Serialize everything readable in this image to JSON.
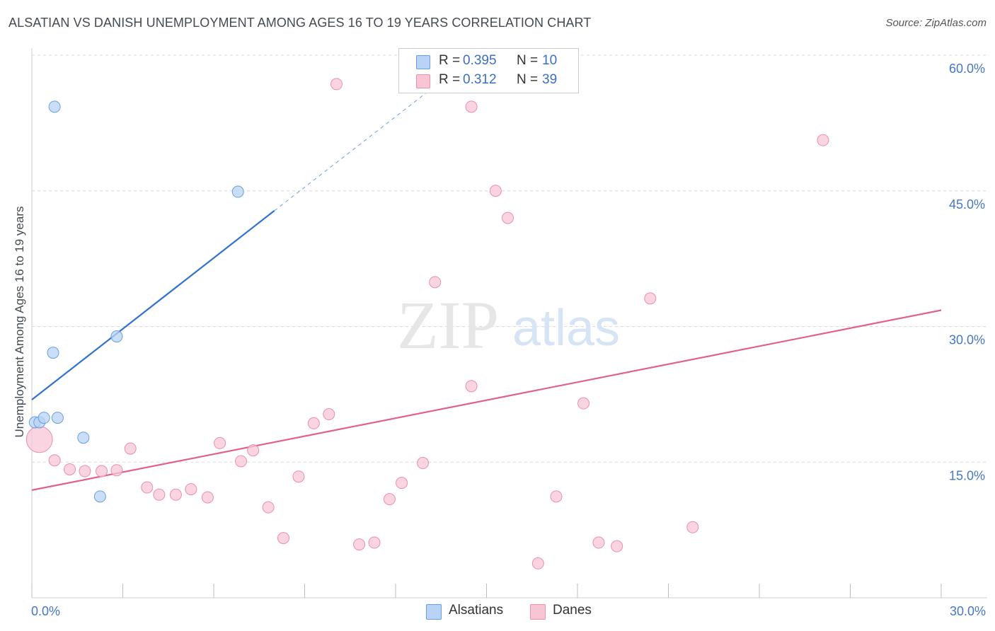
{
  "title": "ALSATIAN VS DANISH UNEMPLOYMENT AMONG AGES 16 TO 19 YEARS CORRELATION CHART",
  "source": "Source: ZipAtlas.com",
  "watermark": {
    "zip": "ZIP",
    "atlas": "atlas"
  },
  "colors": {
    "alsatian_fill": "#b8d3f5",
    "alsatian_stroke": "#6a9ee0",
    "alsatian_line": "#2f72cf",
    "danes_fill": "#f8c5d5",
    "danes_stroke": "#e890ac",
    "danes_line": "#e06090",
    "grid": "#d8d8d8",
    "axis_text": "#4477c9"
  },
  "legend": {
    "items": [
      {
        "r_label": "R =",
        "r_value": "0.395",
        "n_label": "N =",
        "n_value": "10"
      },
      {
        "r_label": "R =",
        "r_value": "0.312",
        "n_label": "N =",
        "n_value": "39"
      }
    ]
  },
  "bottom_legend": {
    "alsatians": "Alsatians",
    "danes": "Danes"
  },
  "chart_data": {
    "type": "scatter",
    "title": "ALSATIAN VS DANISH UNEMPLOYMENT AMONG AGES 16 TO 19 YEARS CORRELATION CHART",
    "xlabel": "",
    "ylabel": "Unemployment Among Ages 16 to 19 years",
    "xlim": [
      0,
      30
    ],
    "ylim": [
      0,
      60
    ],
    "x_tick_labels": [
      "0.0%",
      "30.0%"
    ],
    "y_ticks": [
      15,
      30,
      45,
      60
    ],
    "y_tick_labels": [
      "15.0%",
      "30.0%",
      "45.0%",
      "60.0%"
    ],
    "grid": true,
    "series": [
      {
        "name": "Alsatians",
        "r": 0.395,
        "n": 10,
        "points": [
          {
            "x": 0.1,
            "y": 19.4,
            "s": 1
          },
          {
            "x": 0.25,
            "y": 19.4,
            "s": 1
          },
          {
            "x": 0.4,
            "y": 19.9,
            "s": 1
          },
          {
            "x": 0.7,
            "y": 27.1,
            "s": 1
          },
          {
            "x": 0.75,
            "y": 54.3,
            "s": 1
          },
          {
            "x": 0.85,
            "y": 19.9,
            "s": 1
          },
          {
            "x": 1.7,
            "y": 17.7,
            "s": 1
          },
          {
            "x": 2.25,
            "y": 11.2,
            "s": 1
          },
          {
            "x": 2.8,
            "y": 28.9,
            "s": 1
          },
          {
            "x": 6.8,
            "y": 44.9,
            "s": 1
          }
        ],
        "trend": {
          "x0": 0.0,
          "y0": 21.9,
          "x1": 8.0,
          "y1": 42.8,
          "dash_to_x": 15.0,
          "dash_to_y": 61.0
        }
      },
      {
        "name": "Danes",
        "r": 0.312,
        "n": 39,
        "points": [
          {
            "x": 0.25,
            "y": 17.5,
            "s": 2.3
          },
          {
            "x": 0.75,
            "y": 15.2,
            "s": 1
          },
          {
            "x": 1.25,
            "y": 14.2,
            "s": 1
          },
          {
            "x": 1.75,
            "y": 14.0,
            "s": 1
          },
          {
            "x": 2.3,
            "y": 14.0,
            "s": 1
          },
          {
            "x": 2.8,
            "y": 14.1,
            "s": 1
          },
          {
            "x": 3.25,
            "y": 16.5,
            "s": 1
          },
          {
            "x": 3.8,
            "y": 12.2,
            "s": 1
          },
          {
            "x": 4.2,
            "y": 11.4,
            "s": 1
          },
          {
            "x": 4.75,
            "y": 11.4,
            "s": 1
          },
          {
            "x": 5.25,
            "y": 12.0,
            "s": 1
          },
          {
            "x": 5.8,
            "y": 11.1,
            "s": 1
          },
          {
            "x": 6.2,
            "y": 17.1,
            "s": 1
          },
          {
            "x": 6.9,
            "y": 15.1,
            "s": 1
          },
          {
            "x": 7.3,
            "y": 16.3,
            "s": 1
          },
          {
            "x": 7.8,
            "y": 10.0,
            "s": 1
          },
          {
            "x": 8.3,
            "y": 6.6,
            "s": 1
          },
          {
            "x": 8.8,
            "y": 13.4,
            "s": 1
          },
          {
            "x": 9.3,
            "y": 19.3,
            "s": 1
          },
          {
            "x": 9.8,
            "y": 20.3,
            "s": 1
          },
          {
            "x": 10.05,
            "y": 56.8,
            "s": 1
          },
          {
            "x": 10.8,
            "y": 5.9,
            "s": 1
          },
          {
            "x": 11.3,
            "y": 6.1,
            "s": 1
          },
          {
            "x": 11.8,
            "y": 10.9,
            "s": 1
          },
          {
            "x": 12.2,
            "y": 12.7,
            "s": 1
          },
          {
            "x": 12.9,
            "y": 14.9,
            "s": 1
          },
          {
            "x": 13.3,
            "y": 34.9,
            "s": 1
          },
          {
            "x": 14.5,
            "y": 23.4,
            "s": 1
          },
          {
            "x": 14.5,
            "y": 54.3,
            "s": 1
          },
          {
            "x": 15.3,
            "y": 45.0,
            "s": 1
          },
          {
            "x": 15.7,
            "y": 42.0,
            "s": 1
          },
          {
            "x": 16.7,
            "y": 3.8,
            "s": 1
          },
          {
            "x": 17.3,
            "y": 11.2,
            "s": 1
          },
          {
            "x": 18.2,
            "y": 21.5,
            "s": 1
          },
          {
            "x": 18.7,
            "y": 6.1,
            "s": 1
          },
          {
            "x": 19.3,
            "y": 5.7,
            "s": 1
          },
          {
            "x": 20.4,
            "y": 33.1,
            "s": 1
          },
          {
            "x": 21.8,
            "y": 7.8,
            "s": 1
          },
          {
            "x": 26.1,
            "y": 50.6,
            "s": 1
          }
        ],
        "trend": {
          "x0": 0.0,
          "y0": 11.9,
          "x1": 30.0,
          "y1": 31.8
        }
      }
    ]
  }
}
